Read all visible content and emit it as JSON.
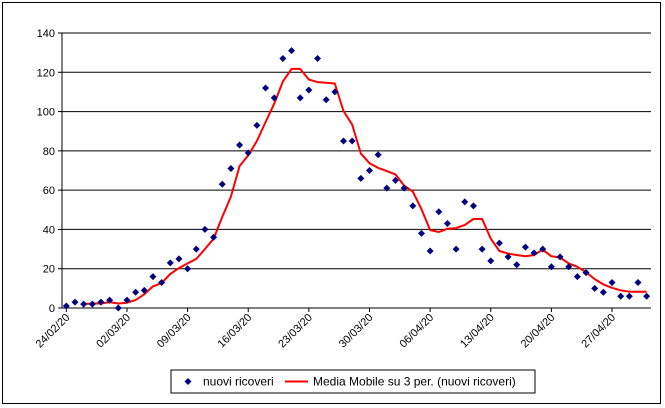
{
  "chart_data": {
    "type": "line",
    "title": "",
    "xlabel": "",
    "ylabel": "",
    "ylim": [
      0,
      140
    ],
    "yticks": [
      "0",
      "20",
      "40",
      "60",
      "80",
      "100",
      "120",
      "140"
    ],
    "grid": "horizontal",
    "legend_placement": "bottom",
    "x_tick_labels": [
      "24/02/20",
      "02/03/20",
      "09/03/20",
      "16/03/20",
      "23/03/20",
      "30/03/20",
      "06/04/20",
      "13/04/20",
      "20/04/20",
      "27/04/20"
    ],
    "x": [
      "24/02/20",
      "25/02/20",
      "26/02/20",
      "27/02/20",
      "28/02/20",
      "29/02/20",
      "01/03/20",
      "02/03/20",
      "03/03/20",
      "04/03/20",
      "05/03/20",
      "06/03/20",
      "07/03/20",
      "08/03/20",
      "09/03/20",
      "10/03/20",
      "11/03/20",
      "12/03/20",
      "13/03/20",
      "14/03/20",
      "15/03/20",
      "16/03/20",
      "17/03/20",
      "18/03/20",
      "19/03/20",
      "20/03/20",
      "21/03/20",
      "22/03/20",
      "23/03/20",
      "24/03/20",
      "25/03/20",
      "26/03/20",
      "27/03/20",
      "28/03/20",
      "29/03/20",
      "30/03/20",
      "31/03/20",
      "01/04/20",
      "02/04/20",
      "03/04/20",
      "04/04/20",
      "05/04/20",
      "06/04/20",
      "07/04/20",
      "08/04/20",
      "09/04/20",
      "10/04/20",
      "11/04/20",
      "12/04/20",
      "13/04/20",
      "14/04/20",
      "15/04/20",
      "16/04/20",
      "17/04/20",
      "18/04/20",
      "19/04/20",
      "20/04/20",
      "21/04/20",
      "22/04/20",
      "23/04/20",
      "24/04/20",
      "25/04/20",
      "26/04/20",
      "27/04/20",
      "28/04/20",
      "29/04/20",
      "30/04/20",
      "01/05/20"
    ],
    "series": [
      {
        "name": "nuovi ricoveri",
        "kind": "scatter",
        "marker": "diamond",
        "color": "#000080",
        "values": [
          1,
          3,
          2,
          2,
          3,
          4,
          0,
          4,
          8,
          9,
          16,
          13,
          23,
          25,
          20,
          30,
          40,
          36,
          63,
          71,
          83,
          79,
          93,
          112,
          107,
          127,
          131,
          107,
          111,
          127,
          106,
          110,
          85,
          85,
          66,
          70,
          78,
          61,
          65,
          61,
          52,
          38,
          29,
          49,
          43,
          30,
          54,
          52,
          30,
          24,
          33,
          26,
          22,
          31,
          28,
          30,
          21,
          26,
          21,
          16,
          18,
          10,
          8,
          13,
          6,
          6,
          13,
          6
        ]
      },
      {
        "name": "Media Mobile su 3 per. (nuovi ricoveri)",
        "kind": "line",
        "color": "#ff0000",
        "values": [
          null,
          null,
          2,
          2.3,
          2.3,
          3,
          2.3,
          2.7,
          4,
          7,
          11,
          12.7,
          17.3,
          20.3,
          22.7,
          25,
          30,
          35.3,
          46.3,
          56.7,
          72.3,
          77.7,
          85,
          94.7,
          104,
          115.3,
          121.7,
          121.7,
          116.3,
          115,
          114.7,
          114.3,
          100.3,
          93.3,
          78.7,
          73.7,
          71.3,
          69.7,
          68,
          62.3,
          59.3,
          50.3,
          39.7,
          38.7,
          40.3,
          40.7,
          42.3,
          45.3,
          45.3,
          35.3,
          29,
          27.7,
          27,
          26.3,
          27,
          29.7,
          26.3,
          25.7,
          22.7,
          21,
          18.3,
          14.7,
          12,
          10.3,
          9,
          8.3,
          8.3,
          8.3
        ]
      }
    ]
  }
}
